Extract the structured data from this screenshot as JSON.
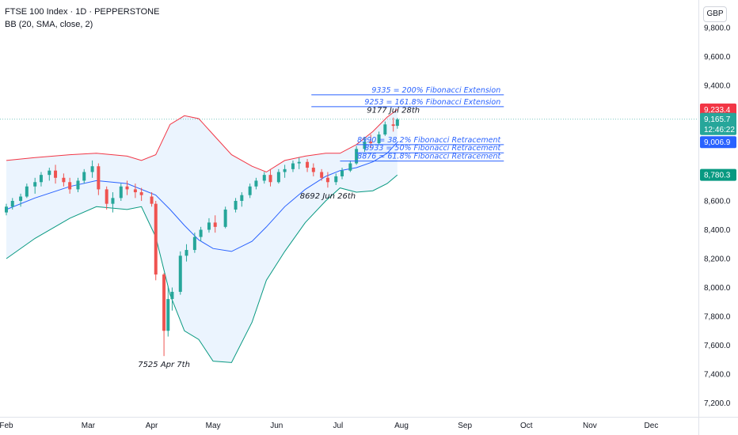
{
  "header": {
    "title": "FTSE 100 Index · 1D · PEPPERSTONE",
    "indicator": "BB (20, SMA, close, 2)",
    "currency": "GBP"
  },
  "colors": {
    "up": "#26a69a",
    "down": "#ef5350",
    "upper_band": "#f23645",
    "basis": "#2962ff",
    "lower_band": "#089981",
    "band_fill": "#e3effd",
    "fib": "#2962ff",
    "badge_price": "#26a69a",
    "badge_upper": "#f23645",
    "badge_basis": "#2962ff",
    "badge_lower": "#089981"
  },
  "chart_data": {
    "type": "candlestick",
    "x_ticks": [
      "Feb",
      "Mar",
      "Apr",
      "May",
      "Jun",
      "Jul",
      "Aug",
      "Sep",
      "Oct",
      "Nov",
      "Dec"
    ],
    "y_ticks": [
      "9,800.0",
      "9,600.0",
      "9,400.0",
      "9,200.0",
      "9,000.0",
      "8,800.0",
      "8,600.0",
      "8,400.0",
      "8,200.0",
      "8,000.0",
      "7,800.0",
      "7,600.0",
      "7,400.0",
      "7,200.0"
    ],
    "y_tick_values": [
      9800,
      9600,
      9400,
      9200,
      9000,
      8800,
      8600,
      8400,
      8200,
      8000,
      7800,
      7600,
      7400,
      7200
    ],
    "ylim": [
      7130,
      9880
    ],
    "x_start_date": "2025-01-20",
    "x_end_date": "2025-12-31",
    "series": [
      {
        "name": "FTSE 100",
        "candles": [
          [
            "2025-01-20",
            8520,
            8580,
            8500,
            8560
          ],
          [
            "2025-01-23",
            8560,
            8620,
            8540,
            8600
          ],
          [
            "2025-01-27",
            8600,
            8650,
            8560,
            8630
          ],
          [
            "2025-01-30",
            8630,
            8720,
            8620,
            8700
          ],
          [
            "2025-02-03",
            8700,
            8760,
            8650,
            8730
          ],
          [
            "2025-02-06",
            8730,
            8800,
            8700,
            8780
          ],
          [
            "2025-02-10",
            8780,
            8830,
            8740,
            8810
          ],
          [
            "2025-02-13",
            8810,
            8850,
            8720,
            8760
          ],
          [
            "2025-02-17",
            8760,
            8790,
            8700,
            8730
          ],
          [
            "2025-02-20",
            8730,
            8760,
            8650,
            8680
          ],
          [
            "2025-02-24",
            8680,
            8760,
            8660,
            8740
          ],
          [
            "2025-02-27",
            8740,
            8820,
            8720,
            8800
          ],
          [
            "2025-03-03",
            8800,
            8880,
            8760,
            8840
          ],
          [
            "2025-03-06",
            8840,
            8860,
            8640,
            8680
          ],
          [
            "2025-03-10",
            8680,
            8700,
            8540,
            8580
          ],
          [
            "2025-03-13",
            8580,
            8660,
            8520,
            8620
          ],
          [
            "2025-03-17",
            8620,
            8720,
            8600,
            8700
          ],
          [
            "2025-03-20",
            8700,
            8740,
            8640,
            8680
          ],
          [
            "2025-03-24",
            8680,
            8720,
            8620,
            8660
          ],
          [
            "2025-03-27",
            8660,
            8690,
            8600,
            8640
          ],
          [
            "2025-04-01",
            8630,
            8660,
            8560,
            8580
          ],
          [
            "2025-04-03",
            8580,
            8600,
            8050,
            8090
          ],
          [
            "2025-04-07",
            8090,
            8100,
            7525,
            7700
          ],
          [
            "2025-04-09",
            7700,
            8010,
            7660,
            7920
          ],
          [
            "2025-04-11",
            7920,
            8000,
            7840,
            7970
          ],
          [
            "2025-04-15",
            7970,
            8250,
            7950,
            8220
          ],
          [
            "2025-04-18",
            8220,
            8300,
            8180,
            8260
          ],
          [
            "2025-04-22",
            8260,
            8380,
            8240,
            8350
          ],
          [
            "2025-04-25",
            8350,
            8420,
            8320,
            8400
          ],
          [
            "2025-04-29",
            8400,
            8480,
            8380,
            8450
          ],
          [
            "2025-05-02",
            8450,
            8500,
            8380,
            8420
          ],
          [
            "2025-05-07",
            8420,
            8560,
            8410,
            8540
          ],
          [
            "2025-05-12",
            8540,
            8620,
            8520,
            8600
          ],
          [
            "2025-05-15",
            8600,
            8660,
            8560,
            8640
          ],
          [
            "2025-05-19",
            8640,
            8720,
            8620,
            8700
          ],
          [
            "2025-05-22",
            8700,
            8760,
            8680,
            8740
          ],
          [
            "2025-05-26",
            8740,
            8800,
            8720,
            8780
          ],
          [
            "2025-05-29",
            8780,
            8820,
            8700,
            8730
          ],
          [
            "2025-06-02",
            8730,
            8820,
            8720,
            8800
          ],
          [
            "2025-06-05",
            8800,
            8850,
            8760,
            8820
          ],
          [
            "2025-06-09",
            8820,
            8880,
            8800,
            8860
          ],
          [
            "2025-06-12",
            8860,
            8900,
            8820,
            8870
          ],
          [
            "2025-06-16",
            8870,
            8890,
            8800,
            8830
          ],
          [
            "2025-06-19",
            8830,
            8860,
            8770,
            8800
          ],
          [
            "2025-06-23",
            8800,
            8820,
            8740,
            8760
          ],
          [
            "2025-06-26",
            8760,
            8800,
            8692,
            8730
          ],
          [
            "2025-06-30",
            8730,
            8790,
            8710,
            8770
          ],
          [
            "2025-07-03",
            8770,
            8830,
            8750,
            8810
          ],
          [
            "2025-07-07",
            8810,
            8880,
            8800,
            8860
          ],
          [
            "2025-07-10",
            8860,
            8980,
            8850,
            8960
          ],
          [
            "2025-07-14",
            8960,
            9040,
            8940,
            9010
          ],
          [
            "2025-07-17",
            9010,
            9060,
            8970,
            9000
          ],
          [
            "2025-07-21",
            9000,
            9080,
            8990,
            9060
          ],
          [
            "2025-07-24",
            9060,
            9150,
            9050,
            9130
          ],
          [
            "2025-07-28",
            9130,
            9177,
            9080,
            9120
          ],
          [
            "2025-07-30",
            9120,
            9175,
            9100,
            9165
          ]
        ]
      },
      {
        "name": "upper",
        "points": [
          [
            "2025-01-20",
            8880
          ],
          [
            "2025-02-03",
            8900
          ],
          [
            "2025-02-20",
            8920
          ],
          [
            "2025-03-05",
            8930
          ],
          [
            "2025-03-20",
            8910
          ],
          [
            "2025-03-27",
            8880
          ],
          [
            "2025-04-03",
            8920
          ],
          [
            "2025-04-10",
            9130
          ],
          [
            "2025-04-17",
            9190
          ],
          [
            "2025-04-24",
            9170
          ],
          [
            "2025-05-01",
            9060
          ],
          [
            "2025-05-10",
            8920
          ],
          [
            "2025-05-20",
            8840
          ],
          [
            "2025-05-27",
            8800
          ],
          [
            "2025-06-05",
            8880
          ],
          [
            "2025-06-15",
            8910
          ],
          [
            "2025-06-25",
            8930
          ],
          [
            "2025-07-02",
            8930
          ],
          [
            "2025-07-10",
            8990
          ],
          [
            "2025-07-18",
            9080
          ],
          [
            "2025-07-25",
            9180
          ],
          [
            "2025-07-30",
            9233
          ]
        ]
      },
      {
        "name": "basis",
        "points": [
          [
            "2025-01-20",
            8540
          ],
          [
            "2025-02-03",
            8620
          ],
          [
            "2025-02-20",
            8700
          ],
          [
            "2025-03-05",
            8740
          ],
          [
            "2025-03-20",
            8720
          ],
          [
            "2025-04-03",
            8640
          ],
          [
            "2025-04-10",
            8540
          ],
          [
            "2025-04-17",
            8430
          ],
          [
            "2025-04-24",
            8330
          ],
          [
            "2025-05-01",
            8270
          ],
          [
            "2025-05-10",
            8250
          ],
          [
            "2025-05-20",
            8320
          ],
          [
            "2025-05-27",
            8420
          ],
          [
            "2025-06-05",
            8560
          ],
          [
            "2025-06-15",
            8680
          ],
          [
            "2025-06-25",
            8770
          ],
          [
            "2025-07-02",
            8810
          ],
          [
            "2025-07-10",
            8830
          ],
          [
            "2025-07-18",
            8870
          ],
          [
            "2025-07-25",
            8930
          ],
          [
            "2025-07-30",
            9007
          ]
        ]
      },
      {
        "name": "lower",
        "points": [
          [
            "2025-01-20",
            8200
          ],
          [
            "2025-02-03",
            8340
          ],
          [
            "2025-02-20",
            8480
          ],
          [
            "2025-03-05",
            8560
          ],
          [
            "2025-03-20",
            8540
          ],
          [
            "2025-03-27",
            8560
          ],
          [
            "2025-04-03",
            8350
          ],
          [
            "2025-04-10",
            7950
          ],
          [
            "2025-04-17",
            7700
          ],
          [
            "2025-04-24",
            7640
          ],
          [
            "2025-05-01",
            7490
          ],
          [
            "2025-05-10",
            7480
          ],
          [
            "2025-05-20",
            7760
          ],
          [
            "2025-05-27",
            8050
          ],
          [
            "2025-06-05",
            8250
          ],
          [
            "2025-06-15",
            8450
          ],
          [
            "2025-06-25",
            8600
          ],
          [
            "2025-07-02",
            8690
          ],
          [
            "2025-07-10",
            8660
          ],
          [
            "2025-07-18",
            8670
          ],
          [
            "2025-07-25",
            8720
          ],
          [
            "2025-07-30",
            8780
          ]
        ]
      }
    ],
    "horizontal_lines": [
      {
        "label": "9335 = 200% Fibonacci Extension",
        "value": 9335,
        "from": "2025-06-18",
        "to": "2025-09-20"
      },
      {
        "label": "9253 = 161.8% Fibonacci Extension",
        "value": 9253,
        "from": "2025-06-18",
        "to": "2025-09-20"
      },
      {
        "label": "8990 = 38.2% Fibonacci Retracement",
        "value": 8990,
        "from": "2025-07-10",
        "to": "2025-09-20"
      },
      {
        "label": "8933 = 50% Fibonacci Retracement",
        "value": 8933,
        "from": "2025-07-10",
        "to": "2025-09-20"
      },
      {
        "label": "8876 = 61.8% Fibonacci Retracement",
        "value": 8876,
        "from": "2025-07-02",
        "to": "2025-09-20"
      }
    ],
    "annotations": [
      {
        "text": "9177 Jul 28th",
        "date": "2025-07-28",
        "value": 9177,
        "position": "above"
      },
      {
        "text": "8692 Jun 26th",
        "date": "2025-06-26",
        "value": 8692,
        "position": "below"
      },
      {
        "text": "7525 Apr 7th",
        "date": "2025-04-07",
        "value": 7525,
        "position": "below"
      }
    ],
    "price_badges": [
      {
        "label": "9,233.4",
        "value": 9233.4,
        "kind": "upper"
      },
      {
        "label": "9,165.7",
        "sub": "12:46:22",
        "value": 9165.7,
        "kind": "price"
      },
      {
        "label": "9,006.9",
        "value": 9006.9,
        "kind": "basis"
      },
      {
        "label": "8,780.3",
        "value": 8780.3,
        "kind": "lower"
      }
    ]
  }
}
